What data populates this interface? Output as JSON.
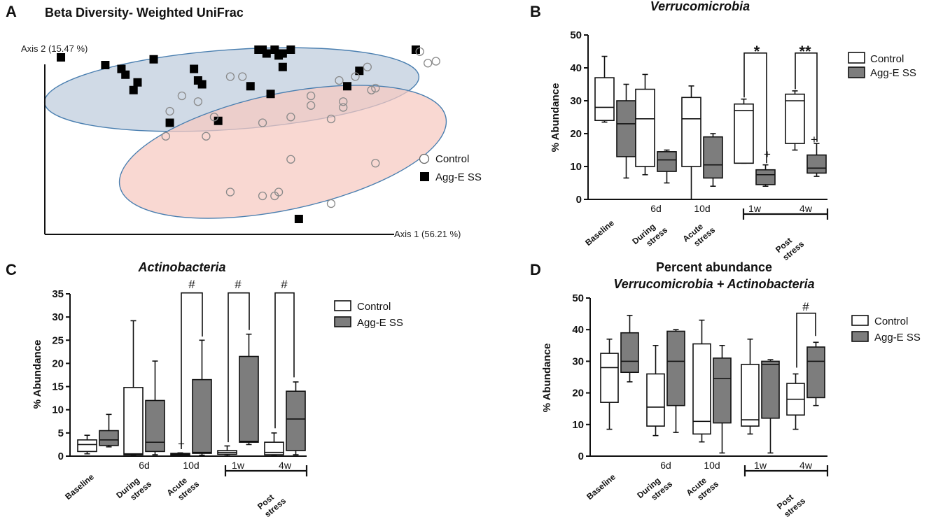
{
  "chart_data": [
    {
      "panel": "A",
      "type": "scatter",
      "title": "Beta Diversity- Weighted UniFrac",
      "xlabel": "Axis 1 (56.21 %)",
      "ylabel": "Axis 2 (15.47 %)",
      "xlim": [
        0,
        100
      ],
      "ylim": [
        0,
        100
      ],
      "legend": [
        {
          "label": "Control",
          "marker": "circle"
        },
        {
          "label": "Agg-E SS",
          "marker": "square"
        }
      ],
      "series": [
        {
          "name": "Agg-E SS",
          "points": [
            [
              4,
              92
            ],
            [
              15,
              88
            ],
            [
              19,
              86
            ],
            [
              20,
              83
            ],
            [
              23,
              79
            ],
            [
              22,
              75
            ],
            [
              27,
              91
            ],
            [
              37,
              86
            ],
            [
              38,
              80
            ],
            [
              39,
              78
            ],
            [
              31,
              58
            ],
            [
              43,
              59
            ],
            [
              53,
              96
            ],
            [
              54,
              96
            ],
            [
              55,
              94
            ],
            [
              57,
              96
            ],
            [
              58,
              93
            ],
            [
              59,
              94
            ],
            [
              61,
              96
            ],
            [
              59,
              87
            ],
            [
              51,
              77
            ],
            [
              56,
              73
            ],
            [
              78,
              85
            ],
            [
              75,
              77
            ],
            [
              92,
              96
            ],
            [
              63,
              8
            ]
          ]
        },
        {
          "name": "Control",
          "points": [
            [
              93,
              95
            ],
            [
              95,
              89
            ],
            [
              97,
              90
            ],
            [
              34,
              72
            ],
            [
              38,
              69
            ],
            [
              46,
              82
            ],
            [
              49,
              82
            ],
            [
              31,
              64
            ],
            [
              42,
              61
            ],
            [
              54,
              58
            ],
            [
              66,
              72
            ],
            [
              66,
              67
            ],
            [
              61,
              61
            ],
            [
              71,
              60
            ],
            [
              74,
              69
            ],
            [
              74,
              66
            ],
            [
              77,
              82
            ],
            [
              80,
              87
            ],
            [
              81,
              75
            ],
            [
              82,
              76
            ],
            [
              73,
              80
            ],
            [
              30,
              51
            ],
            [
              40,
              51
            ],
            [
              61,
              39
            ],
            [
              82,
              37
            ],
            [
              46,
              22
            ],
            [
              54,
              20
            ],
            [
              57,
              20
            ],
            [
              58,
              22
            ],
            [
              71,
              16
            ]
          ]
        }
      ]
    },
    {
      "panel": "B",
      "type": "box",
      "title": "Verrucomicrobia",
      "ylabel": "% Abundance",
      "ylim": [
        0,
        50
      ],
      "yticks": [
        0,
        10,
        20,
        30,
        40,
        50
      ],
      "legend": [
        "Control",
        "Agg-E  SS"
      ],
      "groups": [
        {
          "name": "Baseline",
          "sub": "",
          "control": {
            "min": 23.5,
            "q1": 24,
            "median": 28,
            "q3": 37,
            "max": 43.5
          },
          "agg": {
            "min": 6.5,
            "q1": 13,
            "median": 23,
            "q3": 30,
            "max": 35
          }
        },
        {
          "name": "During stress",
          "sub": "6d",
          "control": {
            "min": 7.5,
            "q1": 10,
            "median": 24.5,
            "q3": 33.5,
            "max": 38
          },
          "agg": {
            "min": 5,
            "q1": 8.5,
            "median": 12,
            "q3": 14.5,
            "max": 15
          }
        },
        {
          "name": "Acute stress",
          "sub": "10d",
          "control": {
            "min": 0,
            "q1": 10,
            "median": 24.5,
            "q3": 31,
            "max": 34.5
          },
          "agg": {
            "min": 4,
            "q1": 6.5,
            "median": 10.5,
            "q3": 19,
            "max": 20
          }
        },
        {
          "name": "1w",
          "sub": "1w",
          "control": {
            "min": 11,
            "q1": 11,
            "median": 27,
            "q3": 29,
            "max": 30.5
          },
          "agg": {
            "min": 4,
            "q1": 4.5,
            "median": 7.5,
            "q3": 9,
            "max": 10.5
          }
        },
        {
          "name": "4w",
          "sub": "4w",
          "control": {
            "min": 15,
            "q1": 17,
            "median": 30,
            "q3": 32,
            "max": 33
          },
          "agg": {
            "min": 7,
            "q1": 8,
            "median": 9.5,
            "q3": 13.5,
            "max": 17
          }
        }
      ],
      "bracket_label": "Post stress",
      "significance": [
        {
          "group": "1w",
          "symbol": "*"
        },
        {
          "group": "4w",
          "symbol": "**"
        },
        {
          "group": "1w",
          "symbol": "+",
          "on": "agg"
        },
        {
          "group": "4w",
          "symbol": "+",
          "on": "agg"
        }
      ]
    },
    {
      "panel": "C",
      "type": "box",
      "title": "Actinobacteria",
      "ylabel": "% Abundance",
      "ylim": [
        0,
        35
      ],
      "yticks": [
        0,
        5,
        10,
        15,
        20,
        25,
        30,
        35
      ],
      "legend": [
        "Control",
        "Agg-E  SS"
      ],
      "groups": [
        {
          "name": "Baseline",
          "sub": "",
          "control": {
            "min": 0.5,
            "q1": 1,
            "median": 2.5,
            "q3": 3.5,
            "max": 4.5
          },
          "agg": {
            "min": 2,
            "q1": 2.3,
            "median": 3.5,
            "q3": 5.5,
            "max": 9
          }
        },
        {
          "name": "During stress",
          "sub": "6d",
          "control": {
            "min": 0.2,
            "q1": 0.3,
            "median": 0.5,
            "q3": 14.8,
            "max": 29.2
          },
          "agg": {
            "min": 0.3,
            "q1": 1,
            "median": 3,
            "q3": 12,
            "max": 20.5
          }
        },
        {
          "name": "Acute stress",
          "sub": "10d",
          "control": {
            "min": 0.1,
            "q1": 0.2,
            "median": 0.4,
            "q3": 0.6,
            "max": 0.7
          },
          "agg": {
            "min": 0.2,
            "q1": 0.6,
            "median": 0.8,
            "q3": 16.5,
            "max": 25
          }
        },
        {
          "name": "1w",
          "sub": "1w",
          "control": {
            "min": 0.1,
            "q1": 0.4,
            "median": 0.8,
            "q3": 1.2,
            "max": 2.2
          },
          "agg": {
            "min": 2.5,
            "q1": 3,
            "median": 3.2,
            "q3": 21.5,
            "max": 26.3
          }
        },
        {
          "name": "4w",
          "sub": "4w",
          "control": {
            "min": 0.1,
            "q1": 0.3,
            "median": 0.8,
            "q3": 3,
            "max": 5
          },
          "agg": {
            "min": 0.3,
            "q1": 1.2,
            "median": 8,
            "q3": 14,
            "max": 16
          }
        }
      ],
      "bracket_label": "Post stress",
      "significance": [
        {
          "group": "Acute stress",
          "symbol": "#"
        },
        {
          "group": "1w",
          "symbol": "#"
        },
        {
          "group": "4w",
          "symbol": "#"
        },
        {
          "group": "Acute stress",
          "symbol": "+",
          "on": "control"
        }
      ]
    },
    {
      "panel": "D",
      "type": "box",
      "title": "Percent abundance",
      "subtitle": "Verrucomicrobia + Actinobacteria",
      "ylabel": "% Abundance",
      "ylim": [
        0,
        50
      ],
      "yticks": [
        0,
        10,
        20,
        30,
        40,
        50
      ],
      "legend": [
        "Control",
        "Agg-E  SS"
      ],
      "groups": [
        {
          "name": "Baseline",
          "sub": "",
          "control": {
            "min": 8.5,
            "q1": 17,
            "median": 28,
            "q3": 32.5,
            "max": 37
          },
          "agg": {
            "min": 23.5,
            "q1": 26.5,
            "median": 30,
            "q3": 39,
            "max": 44.5
          }
        },
        {
          "name": "During stress",
          "sub": "6d",
          "control": {
            "min": 6.5,
            "q1": 9.5,
            "median": 15.5,
            "q3": 26,
            "max": 35
          },
          "agg": {
            "min": 7.5,
            "q1": 16,
            "median": 30,
            "q3": 39.5,
            "max": 40
          }
        },
        {
          "name": "Acute stress",
          "sub": "10d",
          "control": {
            "min": 4.5,
            "q1": 7,
            "median": 11,
            "q3": 35.5,
            "max": 43
          },
          "agg": {
            "min": 1,
            "q1": 10.5,
            "median": 24.5,
            "q3": 31,
            "max": 35
          }
        },
        {
          "name": "1w",
          "sub": "1w",
          "control": {
            "min": 7,
            "q1": 9.5,
            "median": 11.5,
            "q3": 29,
            "max": 37
          },
          "agg": {
            "min": 1,
            "q1": 12,
            "median": 29,
            "q3": 30,
            "max": 30.5
          }
        },
        {
          "name": "4w",
          "sub": "4w",
          "control": {
            "min": 8.5,
            "q1": 13,
            "median": 18,
            "q3": 23,
            "max": 26
          },
          "agg": {
            "min": 16,
            "q1": 18.5,
            "median": 30,
            "q3": 34.5,
            "max": 36
          }
        }
      ],
      "bracket_label": "Post stress",
      "significance": [
        {
          "group": "4w",
          "symbol": "#"
        }
      ]
    }
  ],
  "panel_labels": [
    "A",
    "B",
    "C",
    "D"
  ],
  "colors": {
    "control_fill": "#ffffff",
    "agg_fill": "#7d7d7d",
    "control_ellipse": "#c8d4e2",
    "agg_ellipse": "#f6c9c1",
    "ellipse_stroke": "#4a7fb0",
    "marker_circle": "#8a8a8a",
    "marker_square": "#000000"
  }
}
